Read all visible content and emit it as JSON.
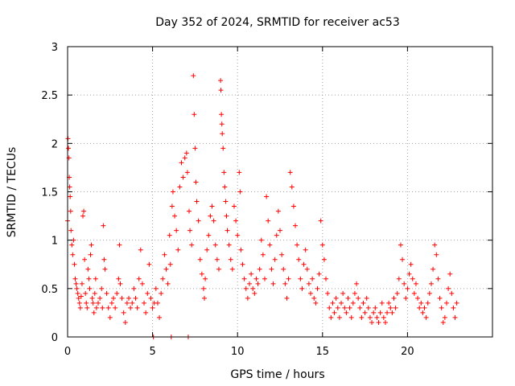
{
  "chart_data": {
    "type": "scatter",
    "title": "Day 352 of 2024, SRMTID for receiver ac53",
    "xlabel": "GPS time / hours",
    "ylabel": "SRMTID / TECUs",
    "xlim": [
      0,
      25
    ],
    "ylim": [
      0,
      3
    ],
    "xticks": [
      0,
      5,
      10,
      15,
      20
    ],
    "xtick_labels": [
      "0",
      "5",
      "10",
      "15",
      "20"
    ],
    "yticks": [
      0,
      0.5,
      1,
      1.5,
      2,
      2.5,
      3
    ],
    "ytick_labels": [
      "0",
      "0.5",
      "1",
      "1.5",
      "2",
      "2.5",
      "3"
    ],
    "grid": true,
    "marker": "+",
    "color": "#ff0000",
    "series": [
      {
        "name": "SRMTID",
        "points": [
          [
            0.0,
            1.2
          ],
          [
            0.02,
            2.05
          ],
          [
            0.05,
            1.95
          ],
          [
            0.08,
            1.85
          ],
          [
            0.1,
            1.65
          ],
          [
            0.12,
            1.55
          ],
          [
            0.15,
            1.45
          ],
          [
            0.18,
            1.3
          ],
          [
            0.2,
            1.1
          ],
          [
            0.25,
            0.95
          ],
          [
            0.3,
            0.85
          ],
          [
            0.35,
            1.0
          ],
          [
            0.4,
            0.75
          ],
          [
            0.45,
            0.6
          ],
          [
            0.5,
            0.55
          ],
          [
            0.55,
            0.5
          ],
          [
            0.6,
            0.45
          ],
          [
            0.65,
            0.4
          ],
          [
            0.7,
            0.35
          ],
          [
            0.75,
            0.3
          ],
          [
            0.8,
            0.42
          ],
          [
            0.85,
            0.55
          ],
          [
            0.9,
            1.25
          ],
          [
            0.95,
            1.3
          ],
          [
            1.0,
            0.8
          ],
          [
            1.05,
            0.45
          ],
          [
            1.1,
            0.35
          ],
          [
            1.15,
            0.3
          ],
          [
            1.2,
            0.7
          ],
          [
            1.25,
            0.6
          ],
          [
            1.3,
            0.5
          ],
          [
            1.35,
            0.85
          ],
          [
            1.4,
            0.95
          ],
          [
            1.45,
            0.4
          ],
          [
            1.5,
            0.35
          ],
          [
            1.55,
            0.25
          ],
          [
            1.6,
            0.45
          ],
          [
            1.65,
            0.6
          ],
          [
            1.7,
            0.3
          ],
          [
            1.8,
            0.35
          ],
          [
            1.9,
            0.4
          ],
          [
            2.0,
            0.5
          ],
          [
            2.05,
            0.3
          ],
          [
            2.1,
            1.15
          ],
          [
            2.15,
            0.8
          ],
          [
            2.2,
            0.7
          ],
          [
            2.3,
            0.45
          ],
          [
            2.4,
            0.3
          ],
          [
            2.5,
            0.2
          ],
          [
            2.6,
            0.35
          ],
          [
            2.7,
            0.4
          ],
          [
            2.8,
            0.3
          ],
          [
            2.9,
            0.45
          ],
          [
            3.0,
            0.6
          ],
          [
            3.05,
            0.95
          ],
          [
            3.1,
            0.55
          ],
          [
            3.2,
            0.4
          ],
          [
            3.3,
            0.25
          ],
          [
            3.4,
            0.15
          ],
          [
            3.5,
            0.35
          ],
          [
            3.6,
            0.4
          ],
          [
            3.7,
            0.3
          ],
          [
            3.8,
            0.35
          ],
          [
            3.9,
            0.5
          ],
          [
            4.0,
            0.4
          ],
          [
            4.1,
            0.3
          ],
          [
            4.2,
            0.6
          ],
          [
            4.3,
            0.9
          ],
          [
            4.4,
            0.55
          ],
          [
            4.5,
            0.35
          ],
          [
            4.6,
            0.25
          ],
          [
            4.7,
            0.45
          ],
          [
            4.8,
            0.75
          ],
          [
            4.9,
            0.4
          ],
          [
            5.0,
            0.3
          ],
          [
            5.05,
            0.0
          ],
          [
            5.1,
            0.35
          ],
          [
            5.2,
            0.5
          ],
          [
            5.3,
            0.35
          ],
          [
            5.4,
            0.2
          ],
          [
            5.5,
            0.45
          ],
          [
            5.6,
            0.6
          ],
          [
            5.7,
            0.85
          ],
          [
            5.8,
            0.7
          ],
          [
            5.9,
            0.55
          ],
          [
            6.0,
            1.05
          ],
          [
            6.05,
            0.75
          ],
          [
            6.1,
            0.0
          ],
          [
            6.15,
            1.35
          ],
          [
            6.2,
            1.5
          ],
          [
            6.3,
            1.25
          ],
          [
            6.4,
            1.1
          ],
          [
            6.5,
            0.9
          ],
          [
            6.6,
            1.55
          ],
          [
            6.7,
            1.8
          ],
          [
            6.8,
            1.65
          ],
          [
            6.9,
            1.85
          ],
          [
            7.0,
            1.9
          ],
          [
            7.05,
            1.7
          ],
          [
            7.1,
            0.0
          ],
          [
            7.15,
            1.3
          ],
          [
            7.2,
            1.1
          ],
          [
            7.3,
            0.95
          ],
          [
            7.4,
            2.7
          ],
          [
            7.45,
            2.3
          ],
          [
            7.5,
            1.95
          ],
          [
            7.55,
            1.6
          ],
          [
            7.6,
            1.4
          ],
          [
            7.7,
            1.2
          ],
          [
            7.8,
            0.8
          ],
          [
            7.9,
            0.65
          ],
          [
            8.0,
            0.5
          ],
          [
            8.05,
            0.4
          ],
          [
            8.1,
            0.6
          ],
          [
            8.2,
            0.9
          ],
          [
            8.3,
            1.05
          ],
          [
            8.4,
            1.25
          ],
          [
            8.5,
            1.35
          ],
          [
            8.6,
            1.2
          ],
          [
            8.7,
            0.95
          ],
          [
            8.8,
            0.8
          ],
          [
            8.9,
            0.7
          ],
          [
            9.0,
            2.65
          ],
          [
            9.02,
            2.55
          ],
          [
            9.05,
            2.3
          ],
          [
            9.08,
            2.2
          ],
          [
            9.1,
            2.1
          ],
          [
            9.15,
            1.95
          ],
          [
            9.2,
            1.7
          ],
          [
            9.25,
            1.55
          ],
          [
            9.3,
            1.4
          ],
          [
            9.35,
            1.25
          ],
          [
            9.4,
            1.1
          ],
          [
            9.5,
            0.95
          ],
          [
            9.6,
            0.8
          ],
          [
            9.7,
            0.7
          ],
          [
            9.8,
            1.35
          ],
          [
            9.9,
            1.2
          ],
          [
            10.0,
            1.05
          ],
          [
            10.1,
            1.7
          ],
          [
            10.15,
            1.5
          ],
          [
            10.2,
            0.9
          ],
          [
            10.3,
            0.75
          ],
          [
            10.4,
            0.6
          ],
          [
            10.5,
            0.5
          ],
          [
            10.6,
            0.4
          ],
          [
            10.7,
            0.55
          ],
          [
            10.8,
            0.65
          ],
          [
            10.9,
            0.5
          ],
          [
            11.0,
            0.45
          ],
          [
            11.1,
            0.6
          ],
          [
            11.2,
            0.55
          ],
          [
            11.3,
            0.7
          ],
          [
            11.4,
            1.0
          ],
          [
            11.5,
            0.85
          ],
          [
            11.6,
            0.6
          ],
          [
            11.7,
            1.45
          ],
          [
            11.8,
            1.2
          ],
          [
            11.9,
            0.95
          ],
          [
            12.0,
            0.7
          ],
          [
            12.1,
            0.55
          ],
          [
            12.2,
            0.8
          ],
          [
            12.3,
            1.05
          ],
          [
            12.4,
            1.3
          ],
          [
            12.5,
            1.1
          ],
          [
            12.6,
            0.85
          ],
          [
            12.7,
            0.7
          ],
          [
            12.8,
            0.55
          ],
          [
            12.9,
            0.4
          ],
          [
            13.0,
            0.6
          ],
          [
            13.1,
            1.7
          ],
          [
            13.2,
            1.55
          ],
          [
            13.3,
            1.35
          ],
          [
            13.4,
            1.15
          ],
          [
            13.5,
            0.95
          ],
          [
            13.6,
            0.8
          ],
          [
            13.7,
            0.6
          ],
          [
            13.8,
            0.5
          ],
          [
            13.9,
            0.75
          ],
          [
            14.0,
            0.9
          ],
          [
            14.1,
            0.7
          ],
          [
            14.2,
            0.55
          ],
          [
            14.3,
            0.45
          ],
          [
            14.4,
            0.6
          ],
          [
            14.5,
            0.4
          ],
          [
            14.6,
            0.35
          ],
          [
            14.7,
            0.5
          ],
          [
            14.8,
            0.65
          ],
          [
            14.9,
            1.2
          ],
          [
            15.0,
            0.95
          ],
          [
            15.1,
            0.8
          ],
          [
            15.2,
            0.6
          ],
          [
            15.3,
            0.45
          ],
          [
            15.4,
            0.3
          ],
          [
            15.5,
            0.2
          ],
          [
            15.6,
            0.35
          ],
          [
            15.7,
            0.25
          ],
          [
            15.8,
            0.4
          ],
          [
            15.9,
            0.3
          ],
          [
            16.0,
            0.2
          ],
          [
            16.1,
            0.35
          ],
          [
            16.2,
            0.45
          ],
          [
            16.3,
            0.3
          ],
          [
            16.4,
            0.25
          ],
          [
            16.5,
            0.4
          ],
          [
            16.6,
            0.3
          ],
          [
            16.7,
            0.2
          ],
          [
            16.8,
            0.35
          ],
          [
            16.9,
            0.45
          ],
          [
            17.0,
            0.55
          ],
          [
            17.1,
            0.4
          ],
          [
            17.2,
            0.3
          ],
          [
            17.3,
            0.2
          ],
          [
            17.4,
            0.35
          ],
          [
            17.5,
            0.25
          ],
          [
            17.6,
            0.4
          ],
          [
            17.7,
            0.3
          ],
          [
            17.8,
            0.2
          ],
          [
            17.9,
            0.15
          ],
          [
            18.0,
            0.25
          ],
          [
            18.1,
            0.3
          ],
          [
            18.2,
            0.2
          ],
          [
            18.3,
            0.15
          ],
          [
            18.4,
            0.25
          ],
          [
            18.5,
            0.35
          ],
          [
            18.6,
            0.2
          ],
          [
            18.7,
            0.15
          ],
          [
            18.8,
            0.25
          ],
          [
            18.9,
            0.35
          ],
          [
            19.0,
            0.3
          ],
          [
            19.1,
            0.25
          ],
          [
            19.2,
            0.4
          ],
          [
            19.3,
            0.3
          ],
          [
            19.4,
            0.45
          ],
          [
            19.5,
            0.6
          ],
          [
            19.6,
            0.95
          ],
          [
            19.7,
            0.8
          ],
          [
            19.8,
            0.55
          ],
          [
            19.9,
            0.4
          ],
          [
            20.0,
            0.5
          ],
          [
            20.1,
            0.65
          ],
          [
            20.2,
            0.75
          ],
          [
            20.3,
            0.6
          ],
          [
            20.4,
            0.45
          ],
          [
            20.5,
            0.55
          ],
          [
            20.6,
            0.4
          ],
          [
            20.7,
            0.3
          ],
          [
            20.8,
            0.35
          ],
          [
            20.9,
            0.25
          ],
          [
            21.0,
            0.3
          ],
          [
            21.1,
            0.2
          ],
          [
            21.2,
            0.35
          ],
          [
            21.3,
            0.45
          ],
          [
            21.4,
            0.55
          ],
          [
            21.5,
            0.7
          ],
          [
            21.6,
            0.95
          ],
          [
            21.7,
            0.85
          ],
          [
            21.8,
            0.6
          ],
          [
            21.9,
            0.4
          ],
          [
            22.0,
            0.3
          ],
          [
            22.1,
            0.15
          ],
          [
            22.2,
            0.2
          ],
          [
            22.3,
            0.35
          ],
          [
            22.4,
            0.5
          ],
          [
            22.5,
            0.65
          ],
          [
            22.6,
            0.45
          ],
          [
            22.7,
            0.3
          ],
          [
            22.8,
            0.2
          ],
          [
            22.9,
            0.35
          ]
        ]
      }
    ]
  }
}
